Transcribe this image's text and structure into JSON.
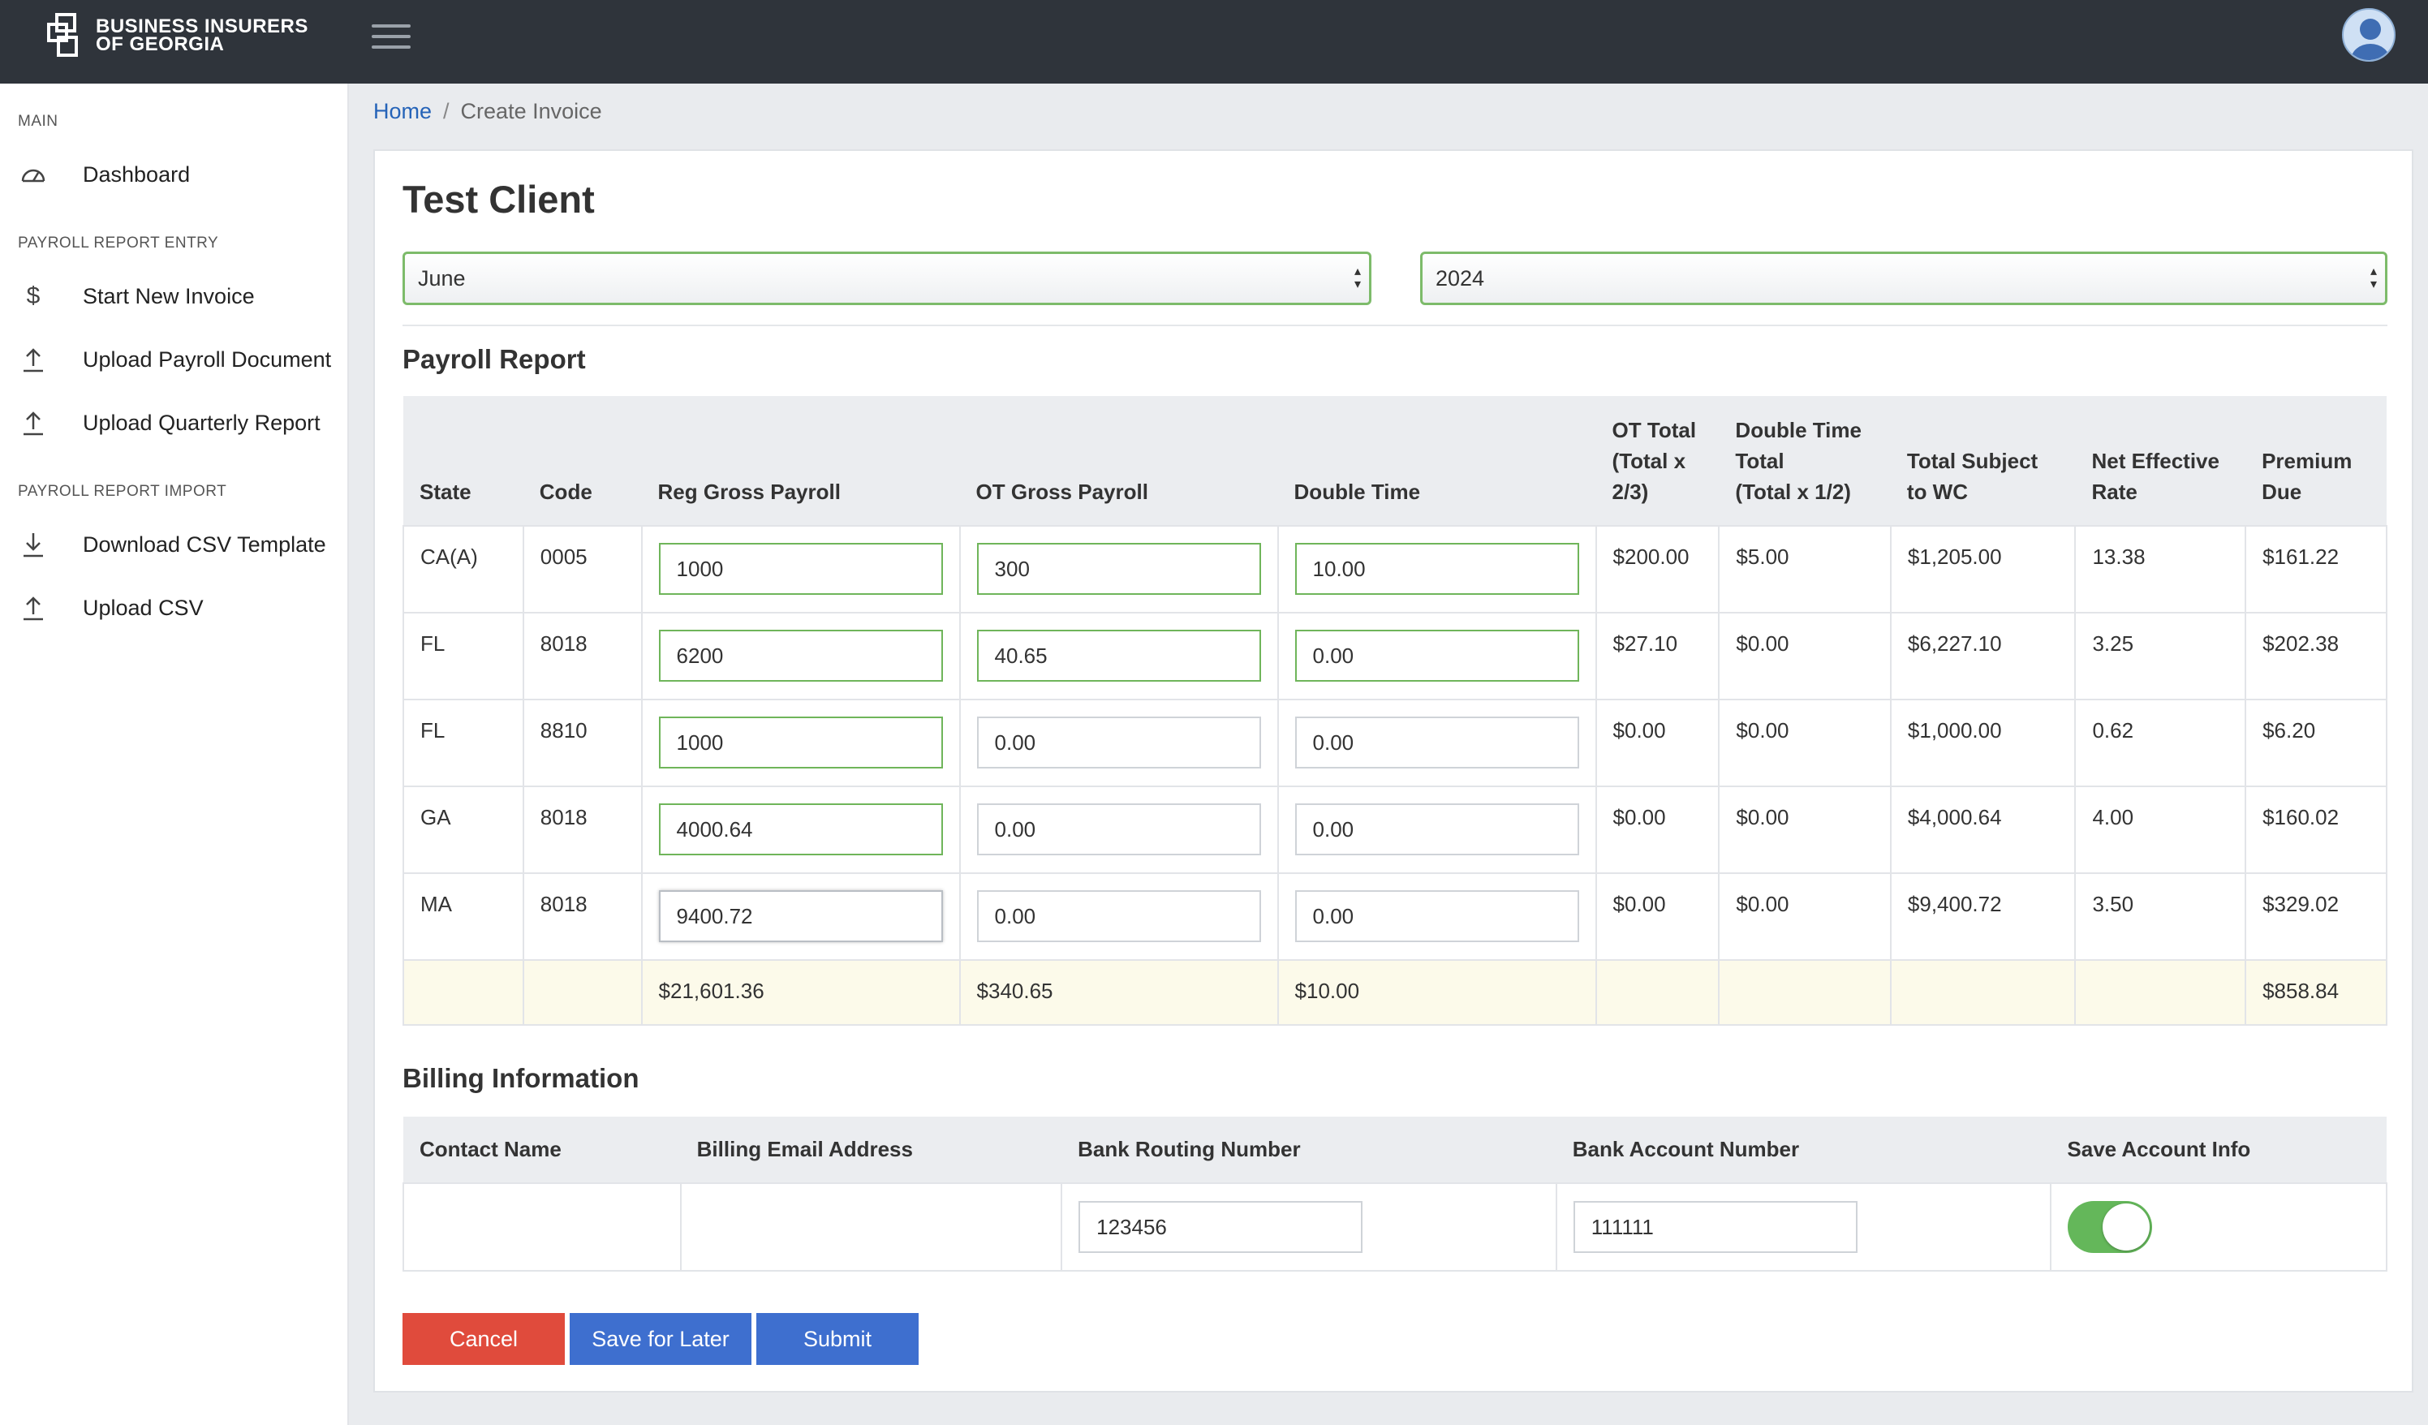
{
  "header": {
    "logo_line1": "BUSINESS INSURERS",
    "logo_line2": "OF GEORGIA"
  },
  "sidebar": {
    "sections": [
      {
        "title": "MAIN",
        "items": [
          {
            "label": "Dashboard",
            "icon": "dashboard-icon"
          }
        ]
      },
      {
        "title": "PAYROLL REPORT ENTRY",
        "items": [
          {
            "label": "Start New Invoice",
            "icon": "dollar-icon"
          },
          {
            "label": "Upload Payroll Document",
            "icon": "upload-icon"
          },
          {
            "label": "Upload Quarterly Report",
            "icon": "upload-icon"
          }
        ]
      },
      {
        "title": "PAYROLL REPORT IMPORT",
        "items": [
          {
            "label": "Download CSV Template",
            "icon": "download-icon"
          },
          {
            "label": "Upload CSV",
            "icon": "upload-icon"
          }
        ]
      }
    ]
  },
  "breadcrumb": {
    "home": "Home",
    "separator": "/",
    "current": "Create Invoice"
  },
  "main": {
    "client_name": "Test Client",
    "month_select": "June",
    "year_select": "2024",
    "payroll_title": "Payroll Report",
    "payroll_headers": {
      "state": "State",
      "code": "Code",
      "reg_gross": "Reg Gross Payroll",
      "ot_gross": "OT Gross Payroll",
      "double_time": "Double Time",
      "ot_total_1": "OT Total",
      "ot_total_2": "(Total x",
      "ot_total_3": "2/3)",
      "dt_total_1": "Double Time",
      "dt_total_2": "Total",
      "dt_total_3": "(Total x 1/2)",
      "subject_1": "Total Subject",
      "subject_2": "to WC",
      "rate_1": "Net Effective",
      "rate_2": "Rate",
      "premium_1": "Premium",
      "premium_2": "Due"
    },
    "payroll_rows": [
      {
        "state": "CA(A)",
        "code": "0005",
        "reg": "1000",
        "ot": "300",
        "dt": "10.00",
        "ot_total": "$200.00",
        "dt_total": "$5.00",
        "subject": "$1,205.00",
        "rate": "13.38",
        "premium": "$161.22"
      },
      {
        "state": "FL",
        "code": "8018",
        "reg": "6200",
        "ot": "40.65",
        "dt": "0.00",
        "ot_total": "$27.10",
        "dt_total": "$0.00",
        "subject": "$6,227.10",
        "rate": "3.25",
        "premium": "$202.38"
      },
      {
        "state": "FL",
        "code": "8810",
        "reg": "1000",
        "ot": "0.00",
        "dt": "0.00",
        "ot_total": "$0.00",
        "dt_total": "$0.00",
        "subject": "$1,000.00",
        "rate": "0.62",
        "premium": "$6.20"
      },
      {
        "state": "GA",
        "code": "8018",
        "reg": "4000.64",
        "ot": "0.00",
        "dt": "0.00",
        "ot_total": "$0.00",
        "dt_total": "$0.00",
        "subject": "$4,000.64",
        "rate": "4.00",
        "premium": "$160.02"
      },
      {
        "state": "MA",
        "code": "8018",
        "reg": "9400.72",
        "ot": "0.00",
        "dt": "0.00",
        "ot_total": "$0.00",
        "dt_total": "$0.00",
        "subject": "$9,400.72",
        "rate": "3.50",
        "premium": "$329.02"
      }
    ],
    "payroll_totals": {
      "reg": "$21,601.36",
      "ot": "$340.65",
      "dt": "$10.00",
      "premium": "$858.84"
    },
    "billing_title": "Billing Information",
    "billing_headers": {
      "contact": "Contact Name",
      "email": "Billing Email Address",
      "routing": "Bank Routing Number",
      "account": "Bank Account Number",
      "save": "Save Account Info"
    },
    "billing_values": {
      "contact": "",
      "email": "",
      "routing": "123456",
      "account": "111111",
      "save_account": true
    },
    "buttons": {
      "cancel": "Cancel",
      "save_later": "Save for Later",
      "submit": "Submit"
    }
  },
  "colors": {
    "topbar": "#2f343b",
    "link": "#2563b8",
    "valid_border": "#6fb55a",
    "cancel": "#e04b3c",
    "primary": "#3e6fcf",
    "toggle_on": "#64b75a",
    "total_row": "#fcfaea"
  }
}
